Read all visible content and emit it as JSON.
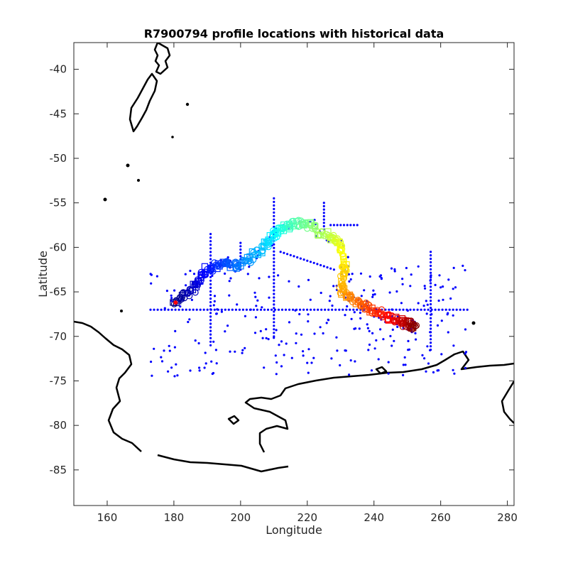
{
  "title": "R7900794 profile locations with historical data",
  "xlabel": "Longitude",
  "ylabel": "Latitude",
  "chart_data": {
    "type": "map-scatter",
    "title": "R7900794 profile locations with historical data",
    "xlabel": "Longitude",
    "ylabel": "Latitude",
    "xlim": [
      150,
      282
    ],
    "ylim": [
      -89,
      -37
    ],
    "xticks": [
      160,
      180,
      200,
      220,
      240,
      260,
      280
    ],
    "yticks": [
      -40,
      -45,
      -50,
      -55,
      -60,
      -65,
      -70,
      -75,
      -80,
      -85
    ],
    "grid": false,
    "colors": {
      "historical": "#0000ff",
      "coastline": "#000000",
      "start_marker": "#ff0000",
      "track_colormap": "jet"
    },
    "float_track": [
      [
        180.5,
        -66.2
      ],
      [
        183,
        -65.5
      ],
      [
        186,
        -64.6
      ],
      [
        188,
        -63.5
      ],
      [
        190,
        -62.5
      ],
      [
        193,
        -62.0
      ],
      [
        196,
        -61.8
      ],
      [
        199,
        -62.0
      ],
      [
        202,
        -61.5
      ],
      [
        205,
        -60.5
      ],
      [
        208,
        -59.5
      ],
      [
        210,
        -58.5
      ],
      [
        212,
        -58.0
      ],
      [
        215,
        -57.5
      ],
      [
        218,
        -57.3
      ],
      [
        221,
        -57.6
      ],
      [
        224,
        -58.4
      ],
      [
        227,
        -58.8
      ],
      [
        230,
        -59.6
      ],
      [
        231,
        -61.5
      ],
      [
        231,
        -63.0
      ],
      [
        230,
        -64.5
      ],
      [
        232,
        -65.5
      ],
      [
        235,
        -66.2
      ],
      [
        238,
        -66.8
      ],
      [
        241,
        -67.3
      ],
      [
        244,
        -67.8
      ],
      [
        247,
        -68.2
      ],
      [
        249,
        -68.5
      ],
      [
        251,
        -68.7
      ],
      [
        252.5,
        -68.9
      ]
    ],
    "historical_lines": [
      {
        "from": [
          173,
          -67.0
        ],
        "to": [
          268,
          -67.0
        ]
      },
      {
        "from": [
          210,
          -54.5
        ],
        "to": [
          210,
          -70.0
        ]
      },
      {
        "from": [
          257,
          -60.5
        ],
        "to": [
          257,
          -71.5
        ]
      },
      {
        "from": [
          225,
          -55.0
        ],
        "to": [
          225,
          -58.0
        ]
      },
      {
        "from": [
          191,
          -58.5
        ],
        "to": [
          191,
          -71.0
        ]
      },
      {
        "from": [
          200,
          -59.5
        ],
        "to": [
          200,
          -62.5
        ]
      },
      {
        "from": [
          212,
          -60.5
        ],
        "to": [
          228,
          -62.5
        ]
      },
      {
        "from": [
          227,
          -57.5
        ],
        "to": [
          235,
          -57.5
        ]
      }
    ]
  }
}
